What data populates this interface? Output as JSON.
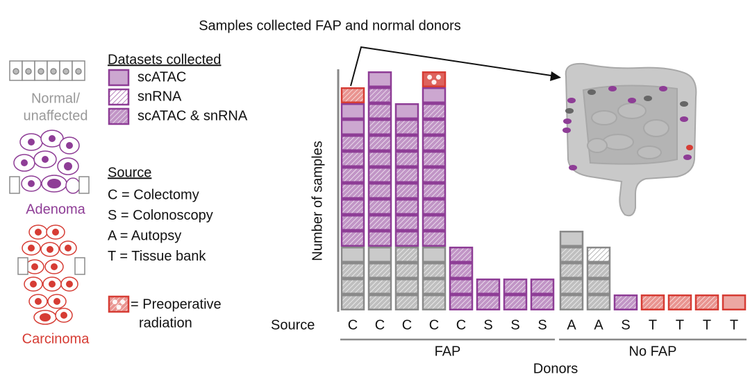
{
  "chart_data": {
    "type": "stacked-blocks",
    "title": "Samples collected FAP and normal donors",
    "y_label": "Number of samples",
    "x_label": "Donors",
    "source_label": "Source",
    "groups": [
      {
        "label": "FAP",
        "categories": [
          "C",
          "C",
          "C",
          "C",
          "C",
          "S",
          "S",
          "S"
        ]
      },
      {
        "label": "No FAP",
        "categories": [
          "A",
          "A",
          "S",
          "T",
          "T",
          "T",
          "T"
        ]
      }
    ],
    "tissues": [
      {
        "label": [
          "Normal/",
          "unaffected"
        ],
        "color": "#8a8a8a"
      },
      {
        "label": [
          "Adenoma"
        ],
        "color": "#8e3d96"
      },
      {
        "label": [
          "Carcinoma"
        ],
        "color": "#d63c34"
      }
    ],
    "datasets_title": "Datasets collected",
    "datasets": [
      {
        "label": "scATAC",
        "style": "solid"
      },
      {
        "label": "snRNA",
        "style": "hatch-light"
      },
      {
        "label": "scATAC & snRNA",
        "style": "hatch-dark"
      }
    ],
    "radiation_label": [
      "= Preoperative",
      "radiation"
    ],
    "source_title": "Source",
    "source_legend": [
      "C = Colectomy",
      "S = Colonoscopy",
      "A = Autopsy",
      "T = Tissue bank"
    ],
    "series": [
      {
        "tissue": 0,
        "dataset": 2,
        "values": [
          [
            3,
            3,
            4,
            3,
            0,
            0,
            0,
            0
          ],
          [
            4,
            3,
            0,
            0,
            0,
            0,
            0
          ]
        ]
      },
      {
        "tissue": 0,
        "dataset": 1,
        "values": [
          [
            0,
            0,
            0,
            0,
            0,
            0,
            0,
            0
          ],
          [
            0,
            1,
            0,
            0,
            0,
            0,
            0
          ]
        ]
      },
      {
        "tissue": 0,
        "dataset": 0,
        "values": [
          [
            1,
            1,
            0,
            1,
            0,
            0,
            0,
            0
          ],
          [
            1,
            0,
            0,
            0,
            0,
            0,
            0
          ]
        ]
      },
      {
        "tissue": 1,
        "dataset": 2,
        "values": [
          [
            7,
            10,
            8,
            9,
            4,
            2,
            2,
            2
          ],
          [
            0,
            0,
            1,
            0,
            0,
            0,
            0
          ]
        ]
      },
      {
        "tissue": 1,
        "dataset": 0,
        "values": [
          [
            2,
            1,
            1,
            1,
            0,
            0,
            0,
            0
          ],
          [
            0,
            0,
            0,
            0,
            0,
            0,
            0
          ]
        ]
      },
      {
        "tissue": 2,
        "dataset": 2,
        "values": [
          [
            1,
            0,
            0,
            0,
            0,
            0,
            0,
            0
          ],
          [
            0,
            0,
            0,
            1,
            1,
            1,
            0
          ]
        ]
      },
      {
        "tissue": 2,
        "dataset": 0,
        "values": [
          [
            0,
            0,
            0,
            0,
            0,
            0,
            0,
            0
          ],
          [
            0,
            0,
            0,
            0,
            0,
            0,
            1
          ]
        ]
      },
      {
        "tissue": 2,
        "dataset": 2,
        "radiation": true,
        "values": [
          [
            0,
            0,
            0,
            1,
            0,
            0,
            0,
            0
          ],
          [
            0,
            0,
            0,
            0,
            0,
            0,
            0
          ]
        ]
      }
    ]
  }
}
